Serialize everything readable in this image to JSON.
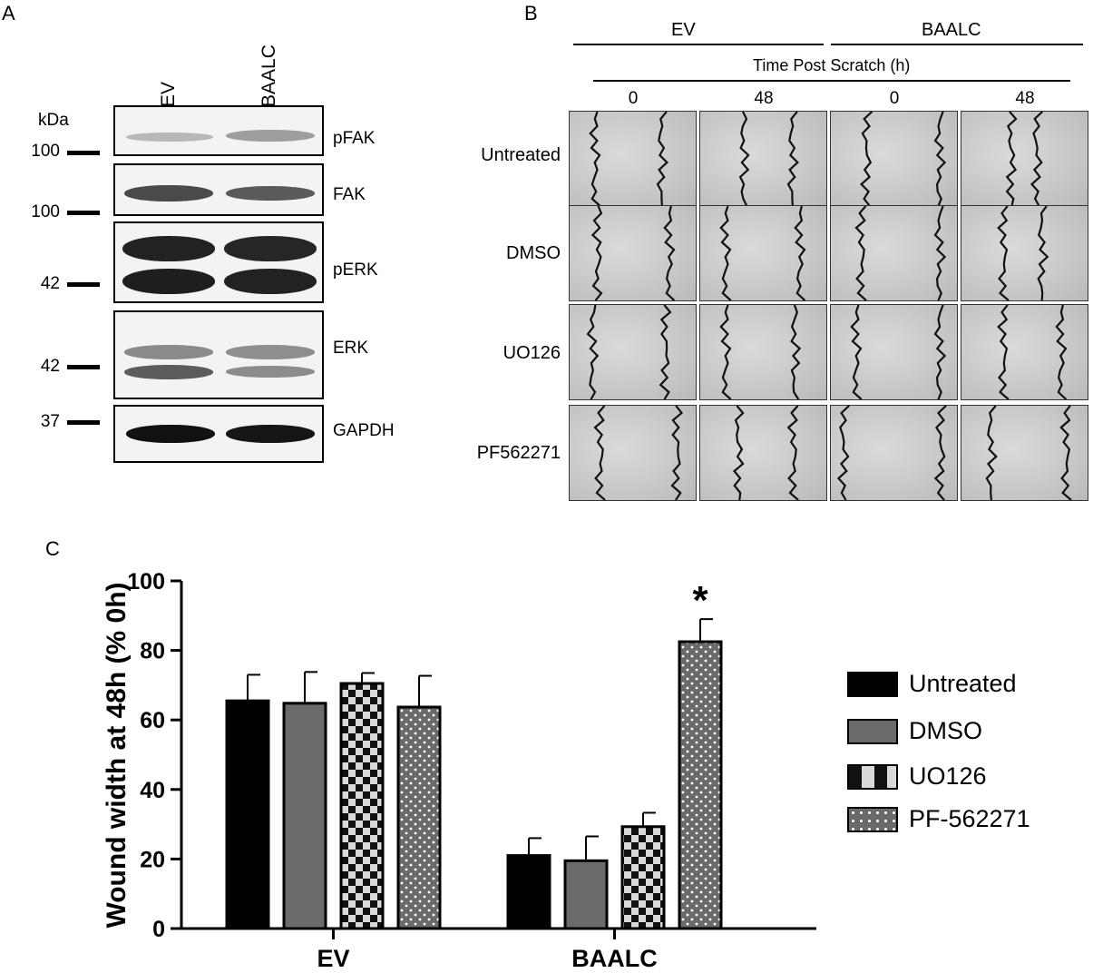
{
  "panels": {
    "a": "A",
    "b": "B",
    "c": "C"
  },
  "panel_a": {
    "lanes": [
      "EV",
      "BAALC"
    ],
    "kda_label": "kDa",
    "markers": [
      "100",
      "100",
      "42",
      "42",
      "37"
    ],
    "blots": [
      "pFAK",
      "FAK",
      "pERK",
      "ERK",
      "GAPDH"
    ]
  },
  "panel_b": {
    "groups": [
      "EV",
      "BAALC"
    ],
    "time_header": "Time Post Scratch (h)",
    "times": [
      "0",
      "48",
      "0",
      "48"
    ],
    "rows": [
      "Untreated",
      "DMSO",
      "UO126",
      "PF562271"
    ]
  },
  "chart_data": {
    "type": "bar",
    "categories": [
      "EV",
      "BAALC"
    ],
    "ylabel": "Wound width at 48h (% 0h)",
    "ylim": [
      0,
      100
    ],
    "yticks": [
      0,
      20,
      40,
      60,
      80,
      100
    ],
    "series": [
      {
        "name": "Untreated",
        "values": [
          65.5,
          21
        ],
        "errors": [
          7.5,
          5
        ],
        "fill": "#000000"
      },
      {
        "name": "DMSO",
        "values": [
          64.8,
          19.5
        ],
        "errors": [
          9,
          7
        ],
        "fill": "#6b6b6b"
      },
      {
        "name": "UO126",
        "values": [
          70.5,
          29.3
        ],
        "errors": [
          3,
          4
        ],
        "fill": "checker"
      },
      {
        "name": "PF-562271",
        "values": [
          63.7,
          82.5
        ],
        "errors": [
          9,
          6.5
        ],
        "fill": "dots"
      }
    ],
    "annotations": [
      {
        "category": "BAALC",
        "series": "PF-562271",
        "text": "*"
      }
    ]
  }
}
